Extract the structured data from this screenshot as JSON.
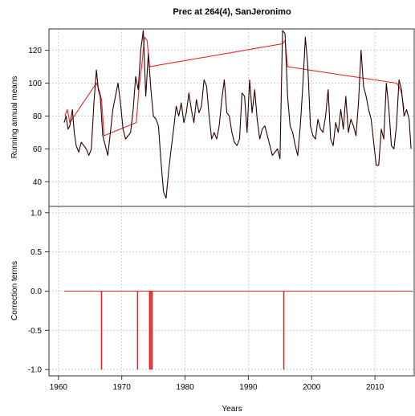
{
  "chart_data": [
    {
      "type": "line",
      "title": "Prec at 264(4), SanJeronimo",
      "xlabel": "",
      "ylabel": "Running annual means",
      "xlim": [
        1958.5,
        2016.2
      ],
      "ylim": [
        25,
        133
      ],
      "yticks": [
        40,
        60,
        80,
        100,
        120
      ],
      "grid": true,
      "series": [
        {
          "color": "#2b0000",
          "x": [
            1960.9,
            1961.2,
            1961.5,
            1961.8,
            1962.2,
            1962.5,
            1962.8,
            1963.2,
            1963.6,
            1964.0,
            1964.4,
            1964.8,
            1965.2,
            1965.6,
            1966.0,
            1966.3,
            1966.6,
            1967.0,
            1967.4,
            1967.8,
            1968.2,
            1968.6,
            1969.0,
            1969.4,
            1969.8,
            1970.2,
            1970.6,
            1971.0,
            1971.4,
            1971.8,
            1972.2,
            1972.6,
            1973.0,
            1973.4,
            1973.8,
            1974.2,
            1974.6,
            1975.0,
            1975.4,
            1975.8,
            1976.2,
            1976.6,
            1977.0,
            1977.4,
            1977.8,
            1978.2,
            1978.6,
            1979.0,
            1979.4,
            1979.8,
            1980.2,
            1980.6,
            1981.0,
            1981.4,
            1981.8,
            1982.2,
            1982.6,
            1983.0,
            1983.4,
            1983.8,
            1984.2,
            1984.6,
            1985.0,
            1985.4,
            1985.8,
            1986.2,
            1986.6,
            1987.0,
            1987.4,
            1987.8,
            1988.2,
            1988.6,
            1989.0,
            1989.4,
            1989.8,
            1990.2,
            1990.6,
            1991.0,
            1991.4,
            1991.8,
            1992.2,
            1992.6,
            1993.0,
            1993.4,
            1993.8,
            1994.2,
            1994.6,
            1995.0,
            1995.4,
            1995.8,
            1996.2,
            1996.6,
            1997.0,
            1997.4,
            1997.8,
            1998.2,
            1998.6,
            1999.0,
            1999.4,
            1999.8,
            2000.2,
            2000.6,
            2001.0,
            2001.4,
            2001.8,
            2002.2,
            2002.6,
            2003.0,
            2003.4,
            2003.8,
            2004.2,
            2004.6,
            2005.0,
            2005.4,
            2005.8,
            2006.2,
            2006.6,
            2007.0,
            2007.4,
            2007.8,
            2008.2,
            2008.6,
            2009.0,
            2009.4,
            2009.8,
            2010.2,
            2010.6,
            2011.0,
            2011.4,
            2011.8,
            2012.2,
            2012.6,
            2013.0,
            2013.4,
            2013.8,
            2014.2,
            2014.6,
            2015.0,
            2015.4,
            2015.7
          ],
          "values": [
            76,
            80,
            72,
            74,
            84,
            70,
            62,
            58,
            64,
            62,
            60,
            56,
            60,
            88,
            108,
            96,
            92,
            68,
            62,
            56,
            70,
            84,
            92,
            100,
            88,
            72,
            66,
            68,
            70,
            84,
            104,
            96,
            120,
            132,
            92,
            118,
            96,
            80,
            78,
            74,
            52,
            34,
            30,
            46,
            60,
            72,
            86,
            80,
            88,
            76,
            82,
            94,
            84,
            76,
            90,
            82,
            86,
            102,
            98,
            80,
            66,
            70,
            66,
            74,
            90,
            102,
            82,
            80,
            70,
            64,
            62,
            66,
            94,
            92,
            70,
            102,
            82,
            96,
            78,
            66,
            72,
            74,
            68,
            62,
            56,
            58,
            60,
            54,
            132,
            130,
            92,
            74,
            70,
            62,
            56,
            74,
            98,
            128,
            110,
            74,
            68,
            66,
            78,
            72,
            70,
            80,
            96,
            66,
            62,
            76,
            70,
            84,
            72,
            92,
            70,
            78,
            74,
            68,
            88,
            120,
            98,
            92,
            84,
            78,
            64,
            50,
            50,
            72,
            66,
            100,
            84,
            62,
            60,
            74,
            102,
            96,
            80,
            84,
            78,
            60
          ]
        },
        {
          "color": "#e8262a",
          "x": [
            1961.0,
            1961.4,
            1961.8,
            1966.0,
            1966.4,
            1966.8,
            1967.2,
            1972.3,
            1972.7,
            1973.2,
            1973.6,
            1974.0,
            1974.4,
            1995.4,
            1995.8,
            1996.2,
            2013.4,
            2013.8,
            2014.2,
            2014.6
          ],
          "values": [
            80,
            84,
            76,
            100,
            96,
            90,
            68,
            76,
            96,
            112,
            128,
            126,
            110,
            124,
            126,
            110,
            100,
            98,
            94,
            84
          ]
        }
      ]
    },
    {
      "type": "bar",
      "xlabel": "Years",
      "ylabel": "Correction terms",
      "xlim": [
        1958.5,
        2016.2
      ],
      "ylim": [
        -1.08,
        1.08
      ],
      "yticks": [
        -1.0,
        -0.5,
        0.0,
        0.5,
        1.0
      ],
      "xticks": [
        1960,
        1970,
        1980,
        1990,
        2000,
        2010
      ],
      "grid": true,
      "baseline": {
        "x": [
          1960.9,
          2016.0
        ],
        "value": 0.0
      },
      "series": [
        {
          "color": "#e8262a",
          "x": [
            1966.8,
            1972.5,
            1974.4,
            1974.6,
            1974.8,
            1995.6
          ],
          "values": [
            -1.0,
            -1.0,
            -1.0,
            -1.0,
            -1.0,
            -1.0
          ]
        }
      ]
    }
  ]
}
